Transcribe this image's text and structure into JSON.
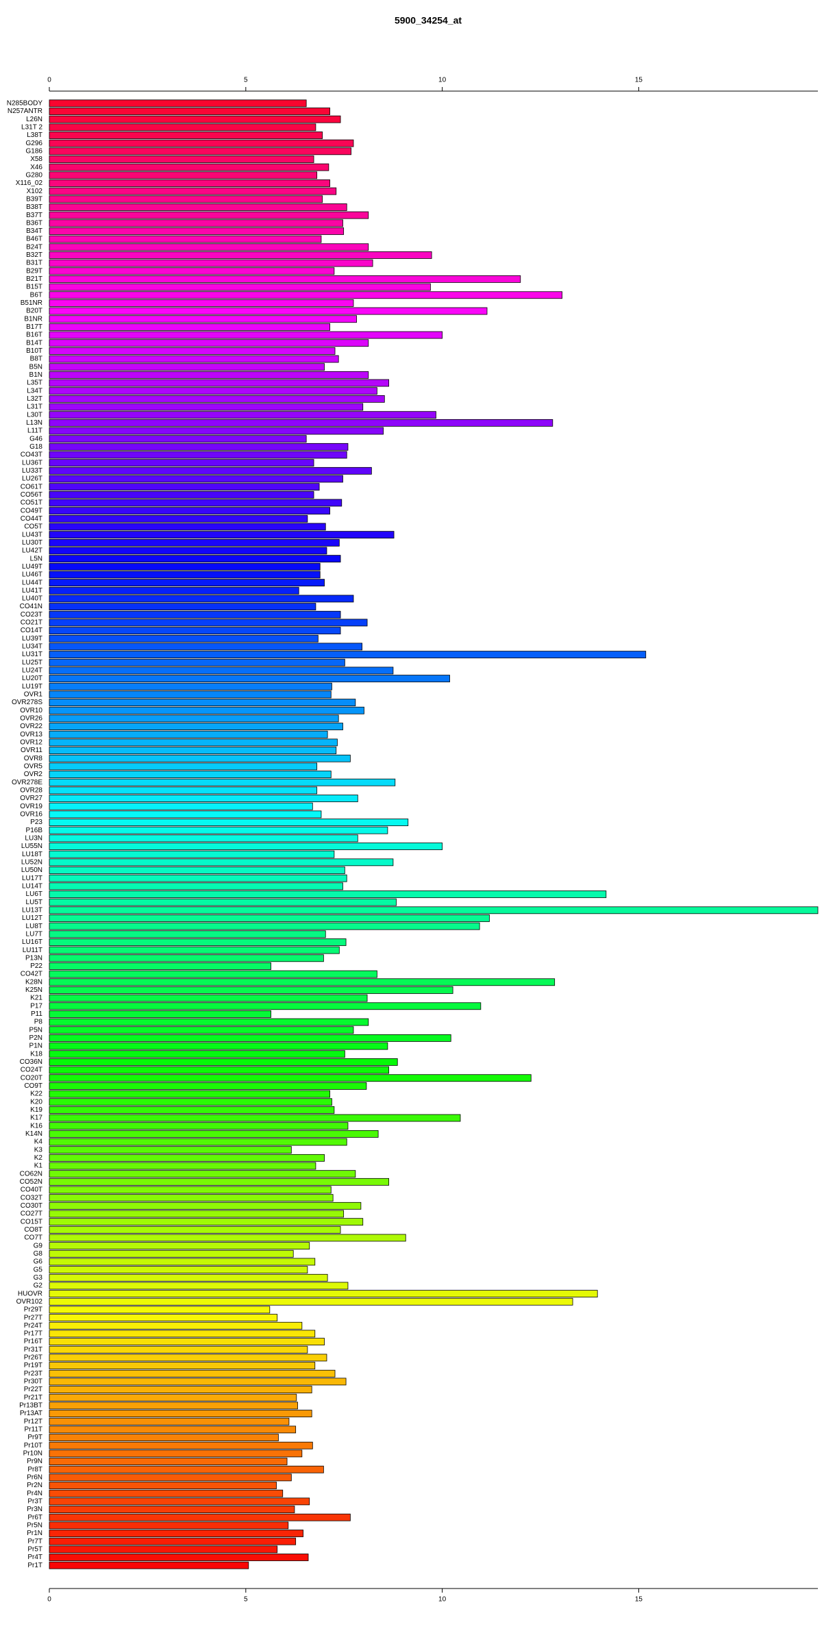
{
  "chart_data": {
    "type": "bar",
    "orientation": "horizontal",
    "title": "5900_34254_at",
    "colormap": "rainbow",
    "categories": [
      "N285BODY",
      "N257ANTR",
      "L26N",
      "L31T 2",
      "L38T",
      "G296",
      "G186",
      "X58",
      "X46",
      "G280",
      "X116_02",
      "X102",
      "B39T",
      "B38T",
      "B37T",
      "B36T",
      "B34T",
      "B46T",
      "B24T",
      "B32T",
      "B31T",
      "B29T",
      "B21T",
      "B15T",
      "B6T",
      "B51NR",
      "B20T",
      "B1NR",
      "B17T",
      "B16T",
      "B14T",
      "B10T",
      "B8T",
      "B5N",
      "B1N",
      "L35T",
      "L34T",
      "L32T",
      "L31T",
      "L30T",
      "L13N",
      "L11T",
      "G46",
      "G18",
      "CO43T",
      "LU36T",
      "LU33T",
      "LU26T",
      "CO61T",
      "CO56T",
      "CO51T",
      "CO49T",
      "CO44T",
      "CO5T",
      "LU43T",
      "LU30T",
      "LU42T",
      "L5N",
      "LU49T",
      "LU46T",
      "LU44T",
      "LU41T",
      "LU40T",
      "CO41N",
      "CO23T",
      "CO21T",
      "CO14T",
      "LU39T",
      "LU34T",
      "LU31T",
      "LU25T",
      "LU24T",
      "LU20T",
      "LU19T",
      "OVR1",
      "OVR278S",
      "OVR10",
      "OVR26",
      "OVR22",
      "OVR13",
      "OVR12",
      "OVR11",
      "OVR8",
      "OVR5",
      "OVR2",
      "OVR278E",
      "OVR28",
      "OVR27",
      "OVR19",
      "OVR16",
      "P23",
      "P16B",
      "LU3N",
      "LU55N",
      "LU18T",
      "LU52N",
      "LU50N",
      "LU17T",
      "LU14T",
      "LU6T",
      "LU5T",
      "LU13T",
      "LU12T",
      "LU8T",
      "LU7T",
      "LU16T",
      "LU11T",
      "P13N",
      "P22",
      "CO42T",
      "K28N",
      "K25N",
      "K21",
      "P17",
      "P11",
      "P8",
      "P5N",
      "P2N",
      "P1N",
      "K18",
      "CO36N",
      "CO24T",
      "CO20T",
      "CO9T",
      "K22",
      "K20",
      "K19",
      "K17",
      "K16",
      "K14N",
      "K4",
      "K3",
      "K2",
      "K1",
      "CO62N",
      "CO52N",
      "CO40T",
      "CO32T",
      "CO30T",
      "CO27T",
      "CO15T",
      "CO8T",
      "CO7T",
      "G9",
      "G8",
      "G6",
      "G5",
      "G3",
      "G2",
      "HUOVR",
      "OVR102",
      "Pr29T",
      "Pr27T",
      "Pr24T",
      "Pr17T",
      "Pr16T",
      "Pr31T",
      "Pr26T",
      "Pr19T",
      "Pr23T",
      "Pr30T",
      "Pr22T",
      "Pr21T",
      "Pr13BT",
      "Pr13AT",
      "Pr12T",
      "Pr11T",
      "Pr9T",
      "Pr10T",
      "Pr10N",
      "Pr9N",
      "Pr8T",
      "Pr6N",
      "Pr2N",
      "Pr4N",
      "Pr3T",
      "Pr3N",
      "Pr6T",
      "Pr5N",
      "Pr1N",
      "Pr7T",
      "Pr5T",
      "Pr4T",
      "Pr1T"
    ],
    "values": [
      6.54,
      7.14,
      7.41,
      6.78,
      6.95,
      7.74,
      7.68,
      6.73,
      7.11,
      6.81,
      7.14,
      7.3,
      6.95,
      7.57,
      8.12,
      7.47,
      7.49,
      6.92,
      8.12,
      9.73,
      8.23,
      7.25,
      11.99,
      9.7,
      13.05,
      7.74,
      11.14,
      7.82,
      7.14,
      10.0,
      8.12,
      7.27,
      7.36,
      7.0,
      8.12,
      8.64,
      8.34,
      8.53,
      7.98,
      9.84,
      12.81,
      8.5,
      6.54,
      7.6,
      7.57,
      6.73,
      8.2,
      7.47,
      6.87,
      6.73,
      7.44,
      7.14,
      6.57,
      7.03,
      8.77,
      7.38,
      7.06,
      7.41,
      6.89,
      6.89,
      7.0,
      6.35,
      7.74,
      6.78,
      7.41,
      8.09,
      7.41,
      6.84,
      7.96,
      15.18,
      7.52,
      8.75,
      10.19,
      7.19,
      7.17,
      7.79,
      8.01,
      7.36,
      7.47,
      7.08,
      7.33,
      7.3,
      7.66,
      6.81,
      7.17,
      8.8,
      6.81,
      7.85,
      6.7,
      6.92,
      9.13,
      8.61,
      7.85,
      10.0,
      7.25,
      8.75,
      7.52,
      7.57,
      7.47,
      14.17,
      8.83,
      19.56,
      11.2,
      10.95,
      7.03,
      7.55,
      7.38,
      6.98,
      5.64,
      8.34,
      12.86,
      10.27,
      8.09,
      10.98,
      5.64,
      8.12,
      7.74,
      10.22,
      8.61,
      7.52,
      8.86,
      8.64,
      12.26,
      8.07,
      7.14,
      7.19,
      7.25,
      10.46,
      7.6,
      8.37,
      7.57,
      6.16,
      7.0,
      6.78,
      7.79,
      8.64,
      7.17,
      7.22,
      7.93,
      7.49,
      7.98,
      7.41,
      9.07,
      6.62,
      6.21,
      6.76,
      6.57,
      7.08,
      7.6,
      13.95,
      13.32,
      5.61,
      5.8,
      6.43,
      6.76,
      7.0,
      6.57,
      7.06,
      6.76,
      7.27,
      7.55,
      6.68,
      6.29,
      6.32,
      6.68,
      6.1,
      6.27,
      5.83,
      6.7,
      6.43,
      6.05,
      6.98,
      6.16,
      5.78,
      5.94,
      6.62,
      6.24,
      7.66,
      6.08,
      6.46,
      6.27,
      5.8,
      6.59,
      5.07
    ],
    "xlim": [
      0,
      19.56
    ],
    "xticks": [
      0,
      5,
      10,
      15
    ]
  }
}
